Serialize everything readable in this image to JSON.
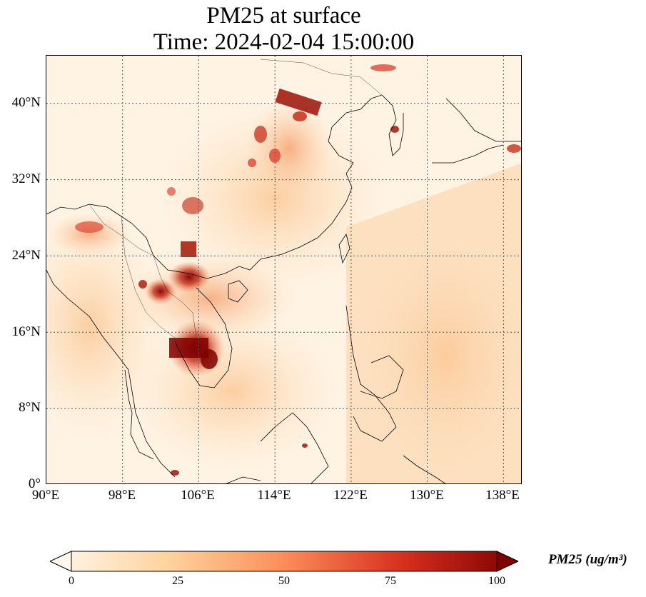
{
  "title": {
    "line1": "PM25 at surface",
    "line2": "Time: 2024-02-04 15:00:00"
  },
  "map": {
    "variable": "PM25",
    "lon_range": [
      90,
      140
    ],
    "lat_range": [
      0,
      45
    ],
    "gridlines": "dotted",
    "colormap": "OrRd",
    "lat_ticks": [
      "40°N",
      "32°N",
      "24°N",
      "16°N",
      "8°N",
      "0°"
    ],
    "lon_ticks": [
      "90°E",
      "98°E",
      "106°E",
      "114°E",
      "122°E",
      "130°E",
      "138°E"
    ],
    "hotspots": [
      {
        "region": "North China Plain",
        "level": "high"
      },
      {
        "region": "Sichuan Basin",
        "level": "high"
      },
      {
        "region": "Cambodia / Southern Laos",
        "level": "very high"
      },
      {
        "region": "Northern Laos / Vietnam",
        "level": "high"
      },
      {
        "region": "Korea / Seoul",
        "level": "high"
      },
      {
        "region": "Singapore",
        "level": "high"
      }
    ]
  },
  "colorbar": {
    "label": "PM25 (ug/m³)",
    "min": 0,
    "max": 100,
    "ticks": [
      "0",
      "25",
      "50",
      "75",
      "100"
    ],
    "extend": "both",
    "colors": [
      "#fff7ec",
      "#fdd49e",
      "#fc8d59",
      "#d7301f",
      "#7f0000"
    ]
  }
}
